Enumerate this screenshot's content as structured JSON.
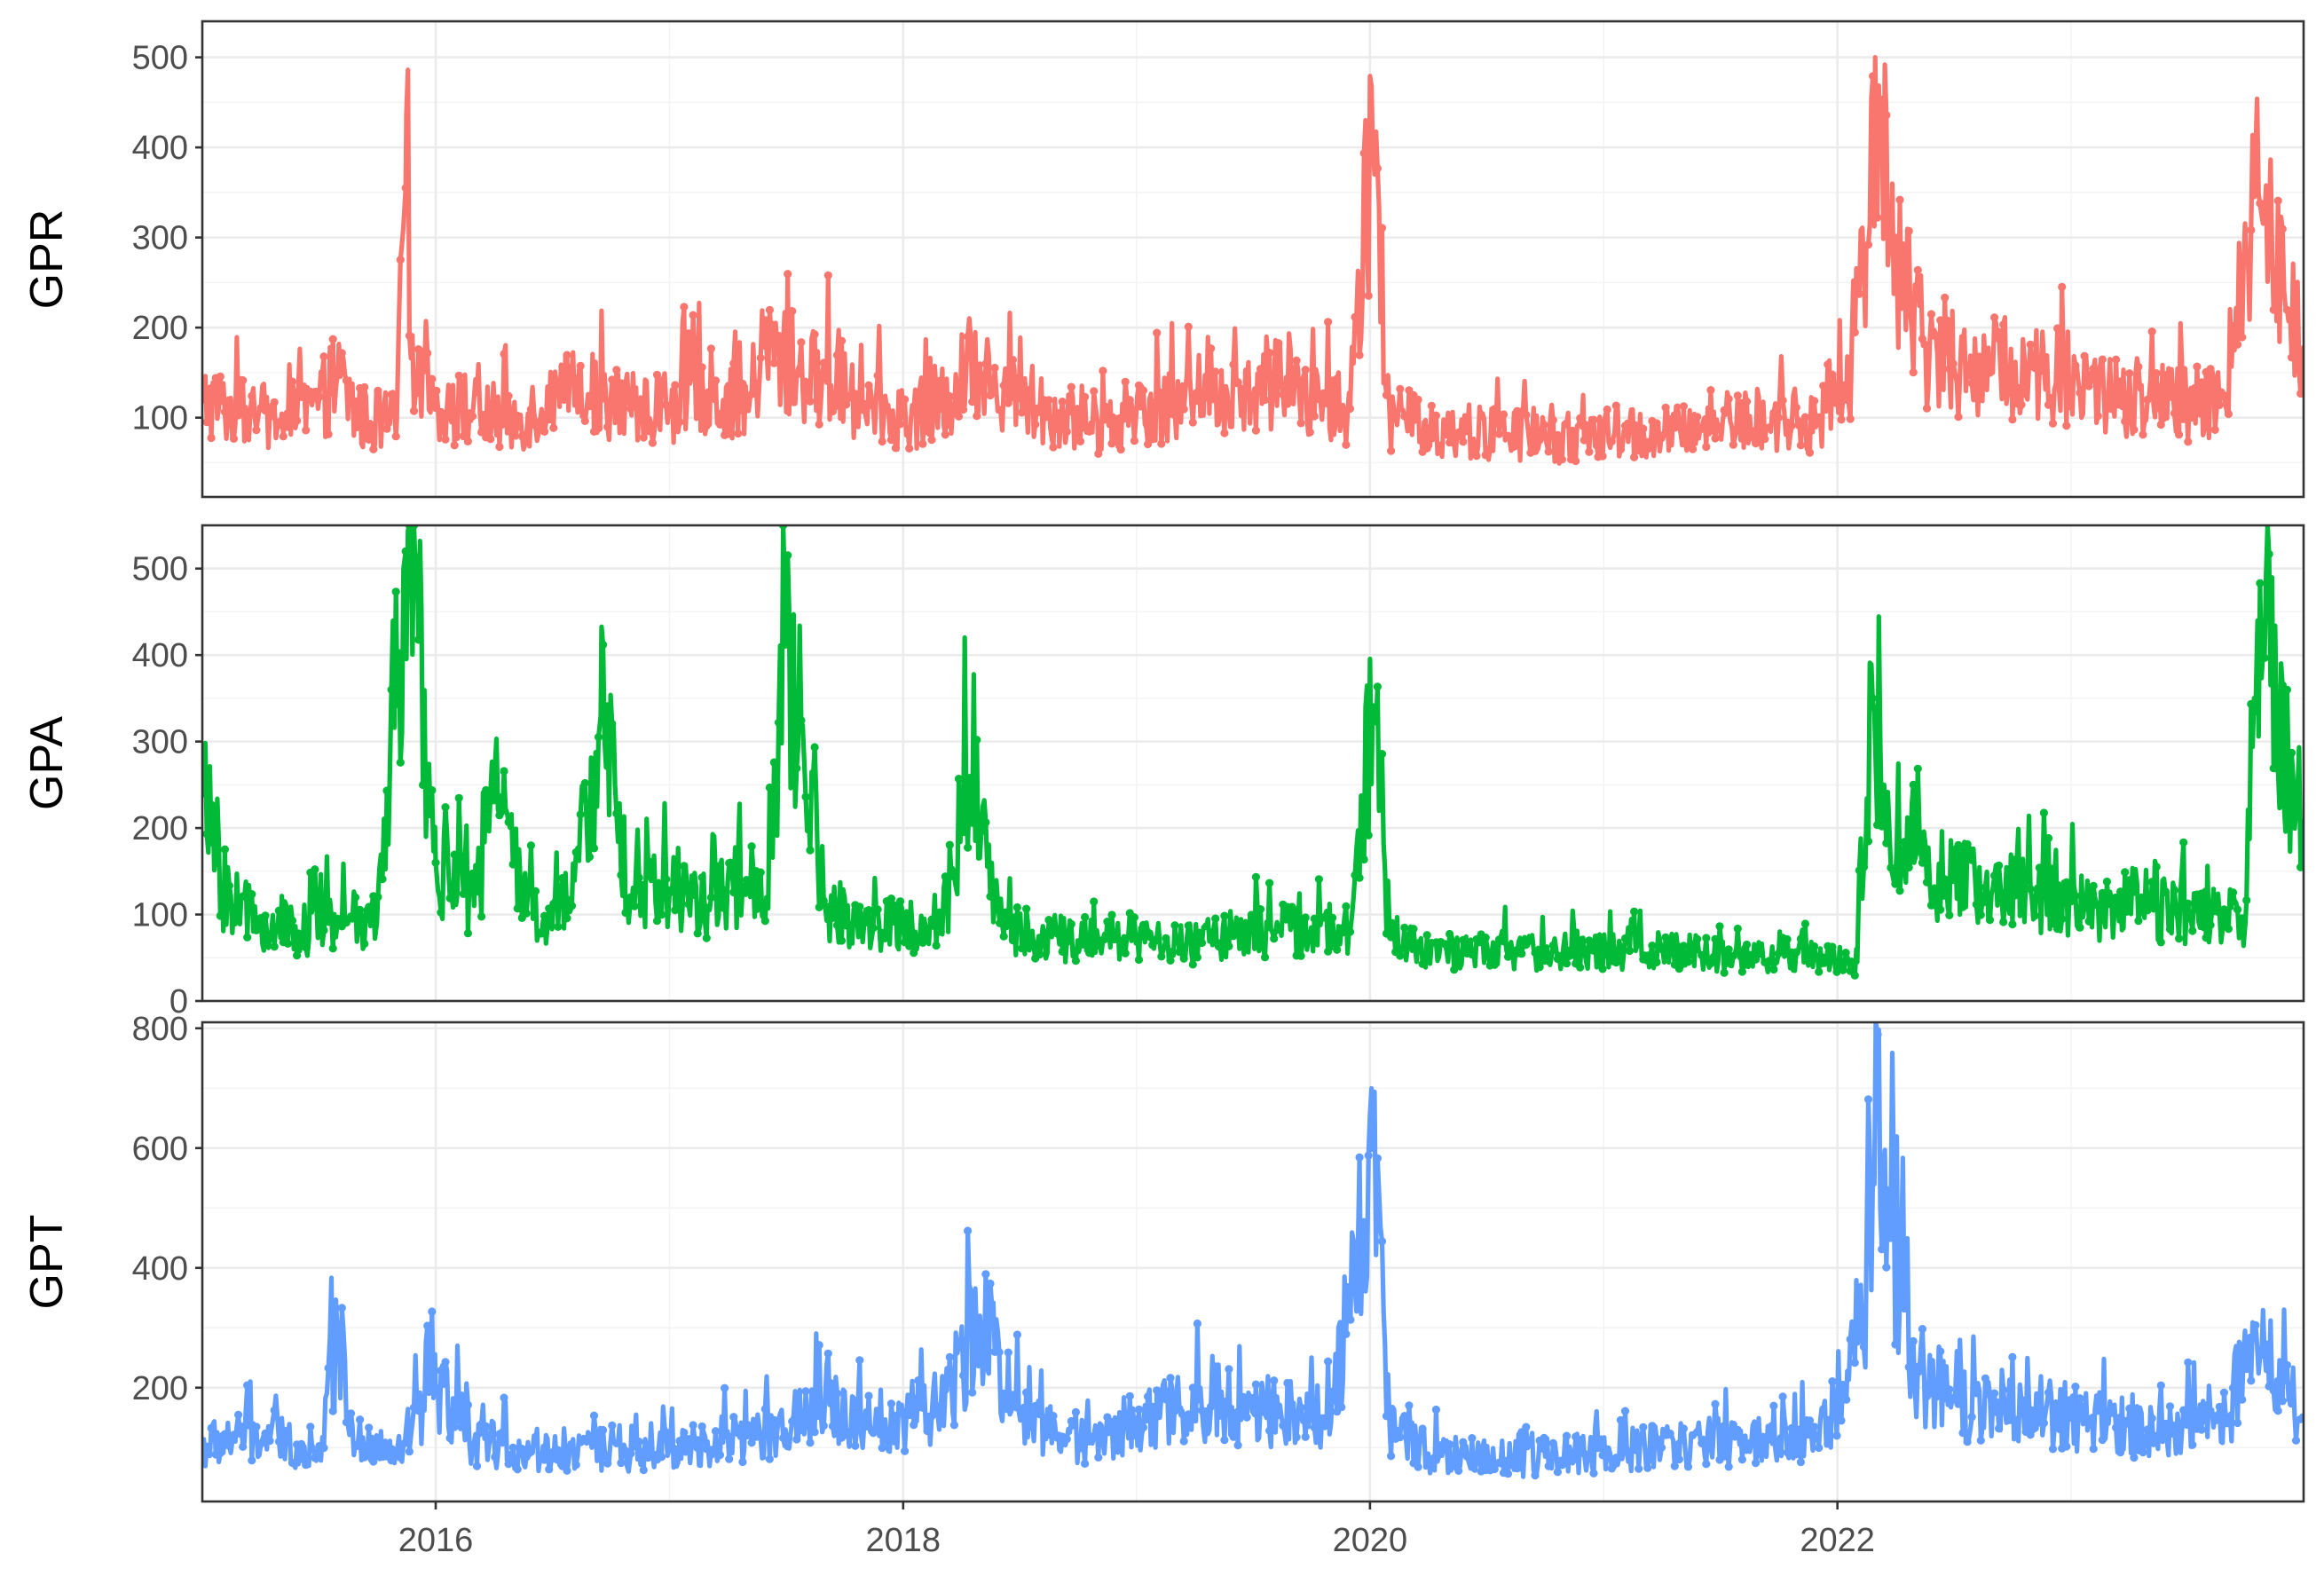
{
  "chart_data": {
    "type": "line",
    "x_axis": {
      "tick_labels": [
        "2016",
        "2018",
        "2020",
        "2022"
      ],
      "tick_values": [
        "2016-01-01",
        "2018-01-01",
        "2020-01-01",
        "2022-01-01"
      ],
      "range": [
        "2015-01-01",
        "2023-12-31"
      ]
    },
    "grid": true,
    "legend": "none",
    "panels": [
      {
        "ylabel": "GPR",
        "color": "#F8766D",
        "ylim": [
          12,
          540
        ],
        "y_ticks": [
          100,
          200,
          300,
          400,
          500
        ],
        "series": {
          "x": [
            "2015-01-01",
            "2015-03-01",
            "2015-05-01",
            "2015-07-01",
            "2015-08-01",
            "2015-09-01",
            "2015-11-01",
            "2015-11-15",
            "2015-12-01",
            "2016-02-01",
            "2016-03-15",
            "2016-05-01",
            "2016-07-01",
            "2016-09-01",
            "2016-11-01",
            "2017-01-01",
            "2017-03-01",
            "2017-05-01",
            "2017-06-01",
            "2017-08-01",
            "2017-09-01",
            "2017-11-01",
            "2018-01-01",
            "2018-03-01",
            "2018-04-01",
            "2018-05-01",
            "2018-07-01",
            "2018-09-01",
            "2018-11-01",
            "2019-01-01",
            "2019-03-01",
            "2019-05-01",
            "2019-07-01",
            "2019-08-15",
            "2019-10-01",
            "2019-12-01",
            "2020-01-05",
            "2020-02-01",
            "2020-04-01",
            "2020-06-01",
            "2020-08-01",
            "2020-10-01",
            "2020-12-01",
            "2021-02-01",
            "2021-04-01",
            "2021-06-01",
            "2021-08-01",
            "2021-10-01",
            "2021-12-01",
            "2022-01-15",
            "2022-02-15",
            "2022-03-01",
            "2022-04-01",
            "2022-05-15",
            "2022-07-01",
            "2022-09-01",
            "2022-11-01",
            "2023-01-01",
            "2023-03-01",
            "2023-05-01",
            "2023-07-01",
            "2023-09-01",
            "2023-10-15",
            "2023-12-31"
          ],
          "y": [
            120,
            105,
            95,
            110,
            150,
            100,
            95,
            355,
            130,
            110,
            105,
            95,
            120,
            130,
            110,
            115,
            130,
            110,
            180,
            140,
            150,
            115,
            100,
            110,
            140,
            160,
            120,
            105,
            95,
            110,
            115,
            130,
            120,
            140,
            125,
            110,
            410,
            100,
            90,
            85,
            80,
            80,
            75,
            85,
            80,
            90,
            95,
            100,
            95,
            120,
            290,
            500,
            300,
            180,
            160,
            150,
            155,
            140,
            130,
            120,
            115,
            110,
            345,
            180
          ]
        }
      },
      {
        "ylabel": "GPA",
        "color": "#00BA38",
        "ylim": [
          0,
          550
        ],
        "y_ticks": [
          0,
          100,
          200,
          300,
          400,
          500
        ],
        "series": {
          "x": [
            "2015-01-01",
            "2015-02-01",
            "2015-04-01",
            "2015-06-01",
            "2015-08-01",
            "2015-10-01",
            "2015-11-15",
            "2016-01-01",
            "2016-03-01",
            "2016-04-01",
            "2016-06-01",
            "2016-08-01",
            "2016-09-15",
            "2016-11-01",
            "2017-01-01",
            "2017-03-01",
            "2017-05-01",
            "2017-06-01",
            "2017-07-01",
            "2017-09-01",
            "2017-11-01",
            "2018-01-01",
            "2018-03-01",
            "2018-04-15",
            "2018-06-01",
            "2018-08-01",
            "2018-10-01",
            "2018-12-01",
            "2019-02-01",
            "2019-04-01",
            "2019-06-01",
            "2019-08-01",
            "2019-10-01",
            "2019-12-01",
            "2020-01-05",
            "2020-02-01",
            "2020-04-01",
            "2020-06-01",
            "2020-08-01",
            "2020-10-01",
            "2020-12-01",
            "2021-02-01",
            "2021-04-01",
            "2021-06-01",
            "2021-08-01",
            "2021-10-01",
            "2021-12-01",
            "2022-02-01",
            "2022-02-25",
            "2022-03-15",
            "2022-05-01",
            "2022-07-01",
            "2022-09-01",
            "2022-11-01",
            "2023-01-01",
            "2023-03-01",
            "2023-05-01",
            "2023-07-01",
            "2023-09-01",
            "2023-10-01",
            "2023-10-20",
            "2023-12-31"
          ],
          "y": [
            240,
            130,
            90,
            80,
            95,
            90,
            520,
            160,
            110,
            230,
            95,
            110,
            330,
            120,
            130,
            110,
            140,
            120,
            410,
            110,
            90,
            85,
            80,
            260,
            90,
            75,
            70,
            75,
            70,
            65,
            75,
            80,
            85,
            80,
            340,
            75,
            60,
            55,
            60,
            55,
            60,
            55,
            60,
            55,
            50,
            55,
            50,
            45,
            350,
            250,
            160,
            140,
            130,
            120,
            115,
            110,
            105,
            100,
            95,
            90,
            440,
            210
          ]
        }
      },
      {
        "ylabel": "GPT",
        "color": "#619CFF",
        "ylim": [
          10,
          810
        ],
        "y_ticks": [
          200,
          400,
          600,
          800
        ],
        "series": {
          "x": [
            "2015-01-01",
            "2015-03-01",
            "2015-05-01",
            "2015-07-01",
            "2015-08-01",
            "2015-09-01",
            "2015-11-01",
            "2016-01-01",
            "2016-03-01",
            "2016-05-01",
            "2016-07-01",
            "2016-09-01",
            "2016-11-01",
            "2017-01-01",
            "2017-03-01",
            "2017-05-01",
            "2017-07-01",
            "2017-09-01",
            "2017-11-01",
            "2018-01-01",
            "2018-03-01",
            "2018-05-01",
            "2018-07-01",
            "2018-09-01",
            "2018-11-01",
            "2019-01-01",
            "2019-03-01",
            "2019-05-01",
            "2019-07-01",
            "2019-09-01",
            "2019-11-01",
            "2020-01-05",
            "2020-02-01",
            "2020-04-01",
            "2020-06-01",
            "2020-08-01",
            "2020-10-01",
            "2020-12-01",
            "2021-02-01",
            "2021-04-01",
            "2021-06-01",
            "2021-08-01",
            "2021-10-01",
            "2021-12-01",
            "2022-01-15",
            "2022-02-15",
            "2022-03-05",
            "2022-03-25",
            "2022-05-01",
            "2022-07-01",
            "2022-09-01",
            "2022-11-01",
            "2023-01-01",
            "2023-03-01",
            "2023-05-01",
            "2023-07-01",
            "2023-09-01",
            "2023-10-15",
            "2023-12-31"
          ],
          "y": [
            100,
            120,
            110,
            95,
            280,
            100,
            90,
            200,
            110,
            100,
            95,
            100,
            90,
            100,
            110,
            120,
            130,
            180,
            140,
            150,
            170,
            320,
            160,
            120,
            110,
            150,
            160,
            175,
            160,
            165,
            140,
            600,
            130,
            90,
            85,
            80,
            85,
            90,
            95,
            100,
            110,
            105,
            110,
            120,
            180,
            380,
            790,
            450,
            230,
            180,
            170,
            165,
            150,
            140,
            130,
            135,
            140,
            300,
            150
          ]
        }
      }
    ]
  }
}
